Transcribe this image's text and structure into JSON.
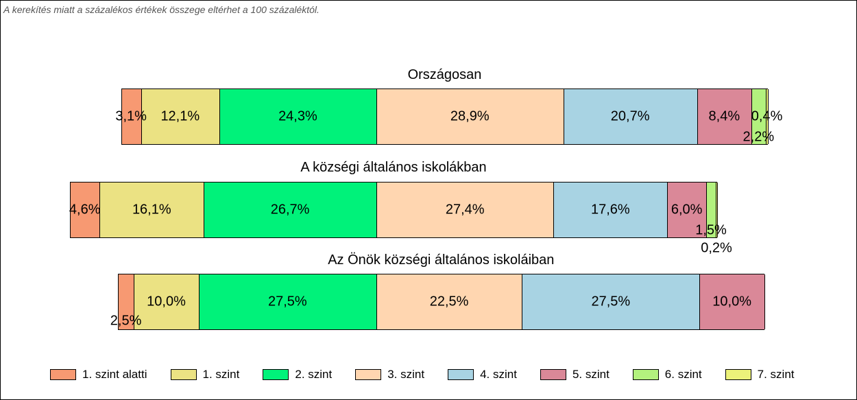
{
  "note": "A kerekítés miatt a  százalékos értékek összege eltérhet a 100 százaléktól.",
  "chart_data": {
    "type": "bar",
    "orientation": "horizontal-stacked-percent",
    "legend_position": "bottom",
    "categories": [
      "1. szint alatti",
      "1. szint",
      "2. szint",
      "3. szint",
      "4. szint",
      "5. szint",
      "6. szint",
      "7. szint"
    ],
    "colors": [
      "#F79972",
      "#EBE283",
      "#00F27A",
      "#FFD6B0",
      "#A8D3E3",
      "#DA8898",
      "#B3F27E",
      "#ECF27A"
    ],
    "bars": [
      {
        "title": "Országosan",
        "values": [
          3.1,
          12.1,
          24.3,
          28.9,
          20.7,
          8.4,
          2.2,
          0.4
        ],
        "labels": [
          "3,1%",
          "12,1%",
          "24,3%",
          "28,9%",
          "20,7%",
          "8,4%",
          "2,2%",
          "0,4%"
        ]
      },
      {
        "title": "A községi általános iskolákban",
        "values": [
          4.6,
          16.1,
          26.7,
          27.4,
          17.6,
          6.0,
          1.5,
          0.2
        ],
        "labels": [
          "4,6%",
          "16,1%",
          "26,7%",
          "27,4%",
          "17,6%",
          "6,0%",
          "1,5%",
          "0,2%"
        ]
      },
      {
        "title": "Az Önök községi általános iskoláiban",
        "values": [
          2.5,
          10.0,
          27.5,
          22.5,
          27.5,
          10.0,
          0,
          0
        ],
        "labels": [
          "2,5%",
          "10,0%",
          "27,5%",
          "22,5%",
          "27,5%",
          "10,0%",
          "",
          ""
        ]
      }
    ]
  }
}
